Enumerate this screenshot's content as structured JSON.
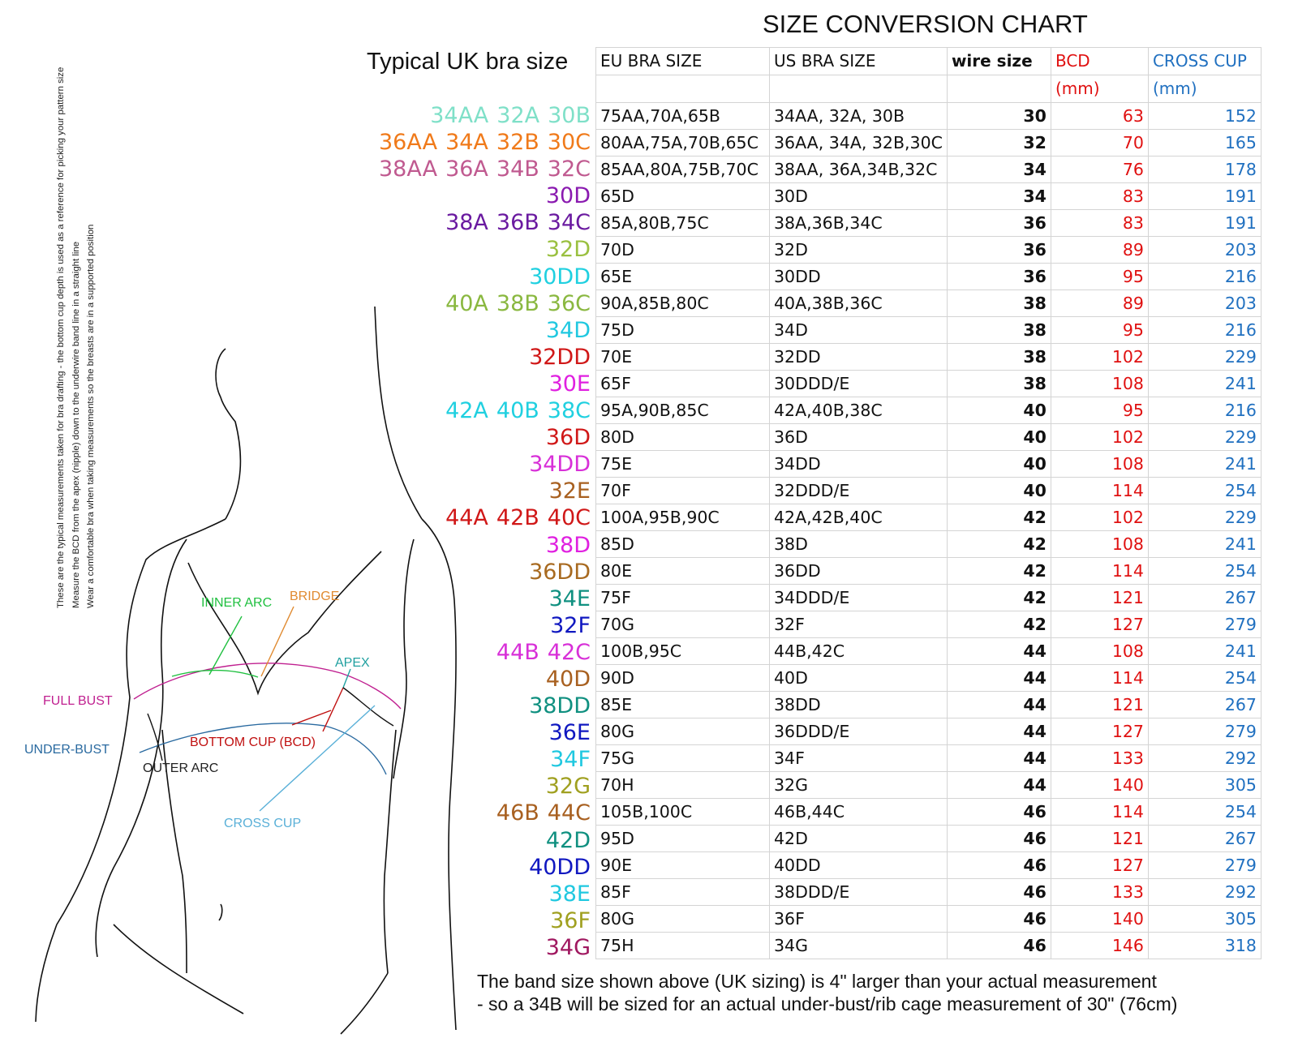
{
  "title": "SIZE CONVERSION CHART",
  "uk_header": "Typical UK bra size",
  "notes": [
    "These are the typical measurements taken for bra drafting - the bottom cup depth is used as a reference for picking your pattern size",
    "Measure the BCD from the apex (nipple) down to the underwire band line in a straight line",
    "Wear a comfortable bra when taking measurements so the breasts are in a supported position"
  ],
  "table": {
    "headers": {
      "eu": "EU BRA SIZE",
      "us": "US BRA SIZE",
      "wire": "wire size",
      "bcd": "BCD",
      "bcd_unit": "(mm)",
      "cc": "CROSS CUP",
      "cc_unit": "(mm)"
    },
    "rows": [
      {
        "eu": "75AA,70A,65B",
        "us": "34AA, 32A, 30B",
        "wire": "30",
        "bcd": "63",
        "cc": "152"
      },
      {
        "eu": "80AA,75A,70B,65C",
        "us": "36AA, 34A, 32B,30C",
        "wire": "32",
        "bcd": "70",
        "cc": "165"
      },
      {
        "eu": "85AA,80A,75B,70C",
        "us": "38AA, 36A,34B,32C",
        "wire": "34",
        "bcd": "76",
        "cc": "178"
      },
      {
        "eu": "65D",
        "us": "30D",
        "wire": "34",
        "bcd": "83",
        "cc": "191"
      },
      {
        "eu": "85A,80B,75C",
        "us": "38A,36B,34C",
        "wire": "36",
        "bcd": "83",
        "cc": "191"
      },
      {
        "eu": "70D",
        "us": "32D",
        "wire": "36",
        "bcd": "89",
        "cc": "203"
      },
      {
        "eu": "65E",
        "us": "30DD",
        "wire": "36",
        "bcd": "95",
        "cc": "216"
      },
      {
        "eu": "90A,85B,80C",
        "us": "40A,38B,36C",
        "wire": "38",
        "bcd": "89",
        "cc": "203"
      },
      {
        "eu": "75D",
        "us": "34D",
        "wire": "38",
        "bcd": "95",
        "cc": "216"
      },
      {
        "eu": "70E",
        "us": "32DD",
        "wire": "38",
        "bcd": "102",
        "cc": "229"
      },
      {
        "eu": "65F",
        "us": "30DDD/E",
        "wire": "38",
        "bcd": "108",
        "cc": "241"
      },
      {
        "eu": "95A,90B,85C",
        "us": "42A,40B,38C",
        "wire": "40",
        "bcd": "95",
        "cc": "216"
      },
      {
        "eu": "80D",
        "us": "36D",
        "wire": "40",
        "bcd": "102",
        "cc": "229"
      },
      {
        "eu": "75E",
        "us": "34DD",
        "wire": "40",
        "bcd": "108",
        "cc": "241"
      },
      {
        "eu": "70F",
        "us": "32DDD/E",
        "wire": "40",
        "bcd": "114",
        "cc": "254"
      },
      {
        "eu": "100A,95B,90C",
        "us": "42A,42B,40C",
        "wire": "42",
        "bcd": "102",
        "cc": "229"
      },
      {
        "eu": "85D",
        "us": "38D",
        "wire": "42",
        "bcd": "108",
        "cc": "241"
      },
      {
        "eu": "80E",
        "us": "36DD",
        "wire": "42",
        "bcd": "114",
        "cc": "254"
      },
      {
        "eu": "75F",
        "us": "34DDD/E",
        "wire": "42",
        "bcd": "121",
        "cc": "267"
      },
      {
        "eu": "70G",
        "us": "32F",
        "wire": "42",
        "bcd": "127",
        "cc": "279"
      },
      {
        "eu": "100B,95C",
        "us": "44B,42C",
        "wire": "44",
        "bcd": "108",
        "cc": "241"
      },
      {
        "eu": "90D",
        "us": "40D",
        "wire": "44",
        "bcd": "114",
        "cc": "254"
      },
      {
        "eu": "85E",
        "us": "38DD",
        "wire": "44",
        "bcd": "121",
        "cc": "267"
      },
      {
        "eu": "80G",
        "us": "36DDD/E",
        "wire": "44",
        "bcd": "127",
        "cc": "279"
      },
      {
        "eu": "75G",
        "us": "34F",
        "wire": "44",
        "bcd": "133",
        "cc": "292"
      },
      {
        "eu": "70H",
        "us": "32G",
        "wire": "44",
        "bcd": "140",
        "cc": "305"
      },
      {
        "eu": "105B,100C",
        "us": "46B,44C",
        "wire": "46",
        "bcd": "114",
        "cc": "254"
      },
      {
        "eu": "95D",
        "us": "42D",
        "wire": "46",
        "bcd": "121",
        "cc": "267"
      },
      {
        "eu": "90E",
        "us": "40DD",
        "wire": "46",
        "bcd": "127",
        "cc": "279"
      },
      {
        "eu": "85F",
        "us": "38DDD/E",
        "wire": "46",
        "bcd": "133",
        "cc": "292"
      },
      {
        "eu": "80G",
        "us": "36F",
        "wire": "46",
        "bcd": "140",
        "cc": "305"
      },
      {
        "eu": "75H",
        "us": "34G",
        "wire": "46",
        "bcd": "146",
        "cc": "318"
      }
    ]
  },
  "uk_sizes": [
    {
      "sizes": [
        "34AA",
        "32A",
        "30B"
      ],
      "color": "#7fe0c8"
    },
    {
      "sizes": [
        "36AA",
        "34A",
        "32B",
        "30C"
      ],
      "color": "#f07a1a"
    },
    {
      "sizes": [
        "38AA",
        "36A",
        "34B",
        "32C"
      ],
      "color": "#c05a90"
    },
    {
      "sizes": [
        "30D"
      ],
      "color": "#8a1ab0"
    },
    {
      "sizes": [
        "38A",
        "36B",
        "34C"
      ],
      "color": "#6a1aa0"
    },
    {
      "sizes": [
        "32D"
      ],
      "color": "#9ac040"
    },
    {
      "sizes": [
        "30DD"
      ],
      "color": "#20d0e0"
    },
    {
      "sizes": [
        "40A",
        "38B",
        "36C"
      ],
      "color": "#8ab840"
    },
    {
      "sizes": [
        "34D"
      ],
      "color": "#20c8e0"
    },
    {
      "sizes": [
        "32DD"
      ],
      "color": "#d01818"
    },
    {
      "sizes": [
        "30E"
      ],
      "color": "#e020e0"
    },
    {
      "sizes": [
        "42A",
        "40B",
        "38C"
      ],
      "color": "#20d0e0"
    },
    {
      "sizes": [
        "36D"
      ],
      "color": "#d01818"
    },
    {
      "sizes": [
        "34DD"
      ],
      "color": "#d830d8"
    },
    {
      "sizes": [
        "32E"
      ],
      "color": "#a86020"
    },
    {
      "sizes": [
        "44A",
        "42B",
        "40C"
      ],
      "color": "#d01818"
    },
    {
      "sizes": [
        "38D"
      ],
      "color": "#e020e0"
    },
    {
      "sizes": [
        "36DD"
      ],
      "color": "#a86a20"
    },
    {
      "sizes": [
        "34E"
      ],
      "color": "#109080"
    },
    {
      "sizes": [
        "32F"
      ],
      "color": "#1018c0"
    },
    {
      "sizes": [
        "44B",
        "42C"
      ],
      "color": "#d830d8"
    },
    {
      "sizes": [
        "40D"
      ],
      "color": "#a86020"
    },
    {
      "sizes": [
        "38DD"
      ],
      "color": "#109080"
    },
    {
      "sizes": [
        "36E"
      ],
      "color": "#1018c0"
    },
    {
      "sizes": [
        "34F"
      ],
      "color": "#20c8e0"
    },
    {
      "sizes": [
        "32G"
      ],
      "color": "#a0a020"
    },
    {
      "sizes": [
        "46B",
        "44C"
      ],
      "color": "#a86020"
    },
    {
      "sizes": [
        "42D"
      ],
      "color": "#109080"
    },
    {
      "sizes": [
        "40DD"
      ],
      "color": "#1018c0"
    },
    {
      "sizes": [
        "38E"
      ],
      "color": "#20c8e0"
    },
    {
      "sizes": [
        "36F"
      ],
      "color": "#a0a020"
    },
    {
      "sizes": [
        "34G"
      ],
      "color": "#a01860"
    }
  ],
  "figure_labels": {
    "inner_arc": "INNER ARC",
    "bridge": "BRIDGE",
    "apex": "APEX",
    "full_bust": "FULL BUST",
    "under_bust": "UNDER-BUST",
    "bottom_cup": "BOTTOM CUP (BCD)",
    "outer_arc": "OUTER ARC",
    "cross_cup": "CROSS CUP"
  },
  "footer": [
    "The band size shown above (UK sizing) is 4\" larger than your actual measurement",
    "- so a 34B will be sized for an actual under-bust/rib cage measurement of 30\" (76cm)"
  ]
}
